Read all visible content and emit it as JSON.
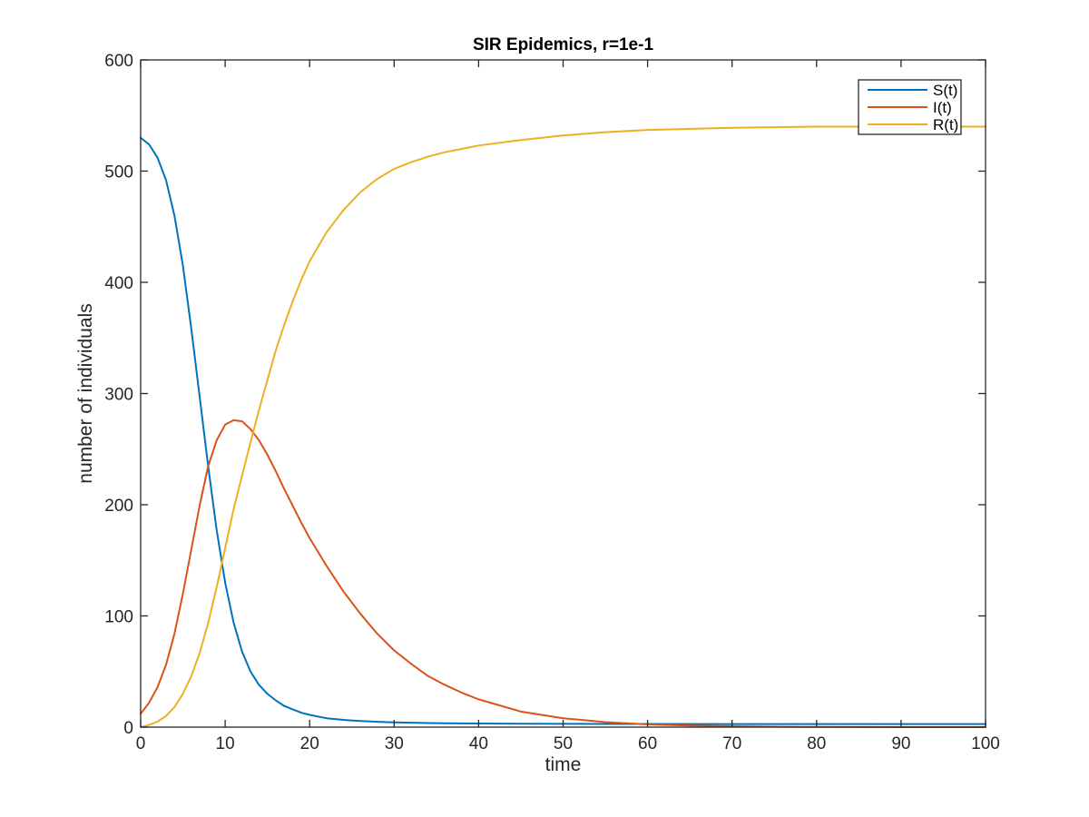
{
  "chart_data": {
    "type": "line",
    "title": "SIR Epidemics, r=1e-1",
    "xlabel": "time",
    "ylabel": "number of individuals",
    "xlim": [
      0,
      100
    ],
    "ylim": [
      0,
      600
    ],
    "xticks": [
      0,
      10,
      20,
      30,
      40,
      50,
      60,
      70,
      80,
      90,
      100
    ],
    "yticks": [
      0,
      100,
      200,
      300,
      400,
      500,
      600
    ],
    "grid": false,
    "legend_position": "top-right",
    "x": [
      0,
      1,
      2,
      3,
      4,
      5,
      6,
      7,
      8,
      9,
      10,
      11,
      12,
      13,
      14,
      15,
      16,
      17,
      18,
      19,
      20,
      22,
      24,
      26,
      28,
      30,
      32,
      34,
      36,
      38,
      40,
      45,
      50,
      55,
      60,
      65,
      70,
      75,
      80,
      85,
      90,
      95,
      100
    ],
    "series": [
      {
        "name": "S(t)",
        "color": "#0072BD",
        "values": [
          530,
          524,
          512,
          492,
          460,
          415,
          358,
          296,
          234,
          177,
          130,
          94,
          68,
          50,
          38,
          30,
          24,
          19,
          16,
          13,
          11,
          8,
          6.5,
          5.5,
          4.8,
          4.3,
          4.0,
          3.7,
          3.5,
          3.4,
          3.3,
          3.1,
          3.0,
          2.9,
          2.9,
          2.8,
          2.8,
          2.8,
          2.8,
          2.8,
          2.8,
          2.8,
          2.8
        ]
      },
      {
        "name": "I(t)",
        "color": "#D95319",
        "values": [
          12,
          22,
          36,
          56,
          84,
          120,
          160,
          200,
          235,
          258,
          272,
          276,
          275,
          268,
          258,
          245,
          230,
          214,
          199,
          184,
          170,
          145,
          122,
          102,
          84,
          69,
          57,
          46,
          38,
          31,
          25,
          14,
          8,
          4.5,
          2.5,
          1.4,
          0.8,
          0.4,
          0.2,
          0.1,
          0.05,
          0.02,
          0.01
        ]
      },
      {
        "name": "R(t)",
        "color": "#EDB120",
        "values": [
          0,
          2,
          5,
          10,
          18,
          30,
          46,
          67,
          94,
          126,
          161,
          196,
          226,
          256,
          285,
          312,
          339,
          362,
          383,
          402,
          419,
          445,
          465,
          481,
          493,
          502,
          508,
          513,
          517,
          520,
          523,
          528,
          532,
          535,
          537,
          538,
          539,
          539.5,
          540,
          540,
          540,
          540,
          540
        ]
      }
    ]
  }
}
